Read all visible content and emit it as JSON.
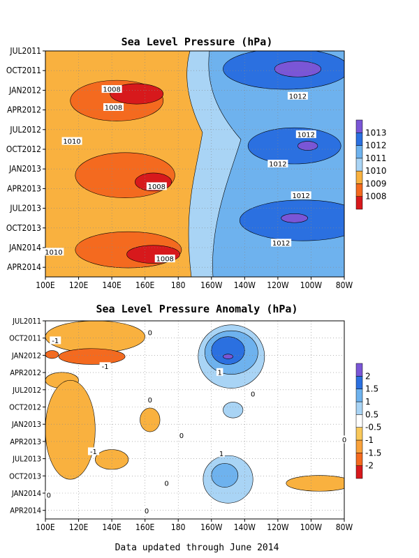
{
  "footer": "Data updated through June 2014",
  "chart_data": [
    {
      "type": "heatmap",
      "title": "Sea Level Pressure (hPa)",
      "x_ticks": [
        "100E",
        "120E",
        "140E",
        "160E",
        "180",
        "160W",
        "140W",
        "120W",
        "100W",
        "80W"
      ],
      "y_ticks": [
        "JUL2011",
        "OCT2011",
        "JAN2012",
        "APR2012",
        "JUL2012",
        "OCT2012",
        "JAN2013",
        "APR2013",
        "JUL2013",
        "OCT2013",
        "JAN2014",
        "APR2014"
      ],
      "colorbar": {
        "labels": [
          "1008",
          "1009",
          "1010",
          "1011",
          "1012",
          "1013"
        ],
        "colors": [
          "#d7191c",
          "#f46a1f",
          "#f9b13f",
          "#a9d4f5",
          "#6eb2ee",
          "#2b70e0",
          "#7a56d6"
        ]
      },
      "contour_labels": [
        {
          "text": "1008",
          "lon": 140,
          "t": 0.17
        },
        {
          "text": "1008",
          "lon": 141,
          "t": 0.25
        },
        {
          "text": "1010",
          "lon": 116,
          "t": 0.4
        },
        {
          "text": "1008",
          "lon": 167,
          "t": 0.6
        },
        {
          "text": "1010",
          "lon": 105,
          "t": 0.89
        },
        {
          "text": "1008",
          "lon": 172,
          "t": 0.92
        },
        {
          "text": "1012",
          "lon": 252,
          "t": 0.2
        },
        {
          "text": "1012",
          "lon": 257,
          "t": 0.37
        },
        {
          "text": "1012",
          "lon": 240,
          "t": 0.5
        },
        {
          "text": "1012",
          "lon": 254,
          "t": 0.64
        },
        {
          "text": "1012",
          "lon": 242,
          "t": 0.85
        }
      ],
      "warm_regions": [
        {
          "level": 1009,
          "cx": 143,
          "cy": 0.22,
          "rx": 28,
          "ry": 0.09
        },
        {
          "level": 1009,
          "cx": 148,
          "cy": 0.55,
          "rx": 30,
          "ry": 0.1
        },
        {
          "level": 1009,
          "cx": 150,
          "cy": 0.88,
          "rx": 32,
          "ry": 0.08
        },
        {
          "level": 1008,
          "cx": 155,
          "cy": 0.19,
          "rx": 16,
          "ry": 0.045
        },
        {
          "level": 1008,
          "cx": 165,
          "cy": 0.58,
          "rx": 11,
          "ry": 0.04
        },
        {
          "level": 1008,
          "cx": 165,
          "cy": 0.9,
          "rx": 16,
          "ry": 0.04
        }
      ],
      "cool_regions": [
        {
          "level": 1012,
          "cx": 245,
          "cy": 0.08,
          "rx": 38,
          "ry": 0.09
        },
        {
          "level": 1012,
          "cx": 250,
          "cy": 0.42,
          "rx": 28,
          "ry": 0.08
        },
        {
          "level": 1012,
          "cx": 255,
          "cy": 0.75,
          "rx": 38,
          "ry": 0.09
        },
        {
          "level": 1013,
          "cx": 252,
          "cy": 0.08,
          "rx": 14,
          "ry": 0.035
        },
        {
          "level": 1013,
          "cx": 258,
          "cy": 0.42,
          "rx": 6,
          "ry": 0.02
        },
        {
          "level": 1013,
          "cx": 250,
          "cy": 0.74,
          "rx": 8,
          "ry": 0.02
        }
      ]
    },
    {
      "type": "heatmap",
      "title": "Sea Level Pressure Anomaly (hPa)",
      "x_ticks": [
        "100E",
        "120E",
        "140E",
        "160E",
        "180",
        "160W",
        "140W",
        "120W",
        "100W",
        "80W"
      ],
      "y_ticks": [
        "JUL2011",
        "OCT2011",
        "JAN2012",
        "APR2012",
        "JUL2012",
        "OCT2012",
        "JAN2013",
        "APR2013",
        "JUL2013",
        "OCT2013",
        "JAN2014",
        "APR2014"
      ],
      "colorbar": {
        "labels": [
          "-2",
          "-1.5",
          "-1",
          "-0.5",
          "0.5",
          "1",
          "1.5",
          "2"
        ],
        "colors": [
          "#d7191c",
          "#f46a1f",
          "#f9a23b",
          "#f9c85a",
          "#ffffff",
          "#a9d4f5",
          "#6eb2ee",
          "#2b70e0",
          "#7a56d6"
        ]
      },
      "contour_labels": [
        {
          "text": "-1",
          "lon": 106,
          "t": 0.1
        },
        {
          "text": "-1",
          "lon": 136,
          "t": 0.23
        },
        {
          "text": "-1",
          "lon": 129,
          "t": 0.66
        },
        {
          "text": "0",
          "lon": 163,
          "t": 0.06
        },
        {
          "text": "0",
          "lon": 163,
          "t": 0.4
        },
        {
          "text": "0",
          "lon": 182,
          "t": 0.58
        },
        {
          "text": "0",
          "lon": 225,
          "t": 0.37
        },
        {
          "text": "0",
          "lon": 280,
          "t": 0.6
        },
        {
          "text": "0",
          "lon": 102,
          "t": 0.88
        },
        {
          "text": "0",
          "lon": 161,
          "t": 0.96
        },
        {
          "text": "0",
          "lon": 173,
          "t": 0.82
        },
        {
          "text": "1",
          "lon": 205,
          "t": 0.26
        },
        {
          "text": "1",
          "lon": 206,
          "t": 0.67
        }
      ],
      "neg_regions": [
        {
          "level": -0.5,
          "cx": 130,
          "cy": 0.08,
          "rx": 30,
          "ry": 0.08
        },
        {
          "level": -0.5,
          "cx": 110,
          "cy": 0.3,
          "rx": 10,
          "ry": 0.04
        },
        {
          "level": -0.5,
          "cx": 115,
          "cy": 0.55,
          "rx": 15,
          "ry": 0.25
        },
        {
          "level": -0.5,
          "cx": 163,
          "cy": 0.5,
          "rx": 6,
          "ry": 0.06
        },
        {
          "level": -0.5,
          "cx": 140,
          "cy": 0.7,
          "rx": 10,
          "ry": 0.05
        },
        {
          "level": -0.5,
          "cx": 265,
          "cy": 0.82,
          "rx": 20,
          "ry": 0.04
        },
        {
          "level": -1,
          "cx": 128,
          "cy": 0.18,
          "rx": 20,
          "ry": 0.04
        },
        {
          "level": -1,
          "cx": 104,
          "cy": 0.17,
          "rx": 4,
          "ry": 0.02
        }
      ],
      "pos_regions": [
        {
          "level": 0.5,
          "cx": 212,
          "cy": 0.18,
          "rx": 20,
          "ry": 0.16
        },
        {
          "level": 1,
          "cx": 212,
          "cy": 0.16,
          "rx": 16,
          "ry": 0.11
        },
        {
          "level": 1.5,
          "cx": 210,
          "cy": 0.15,
          "rx": 10,
          "ry": 0.07
        },
        {
          "level": 2,
          "cx": 210,
          "cy": 0.18,
          "rx": 3,
          "ry": 0.012
        },
        {
          "level": 0.5,
          "cx": 213,
          "cy": 0.45,
          "rx": 6,
          "ry": 0.04
        },
        {
          "level": 0.5,
          "cx": 210,
          "cy": 0.8,
          "rx": 15,
          "ry": 0.12
        },
        {
          "level": 1,
          "cx": 208,
          "cy": 0.78,
          "rx": 8,
          "ry": 0.06
        }
      ]
    }
  ]
}
